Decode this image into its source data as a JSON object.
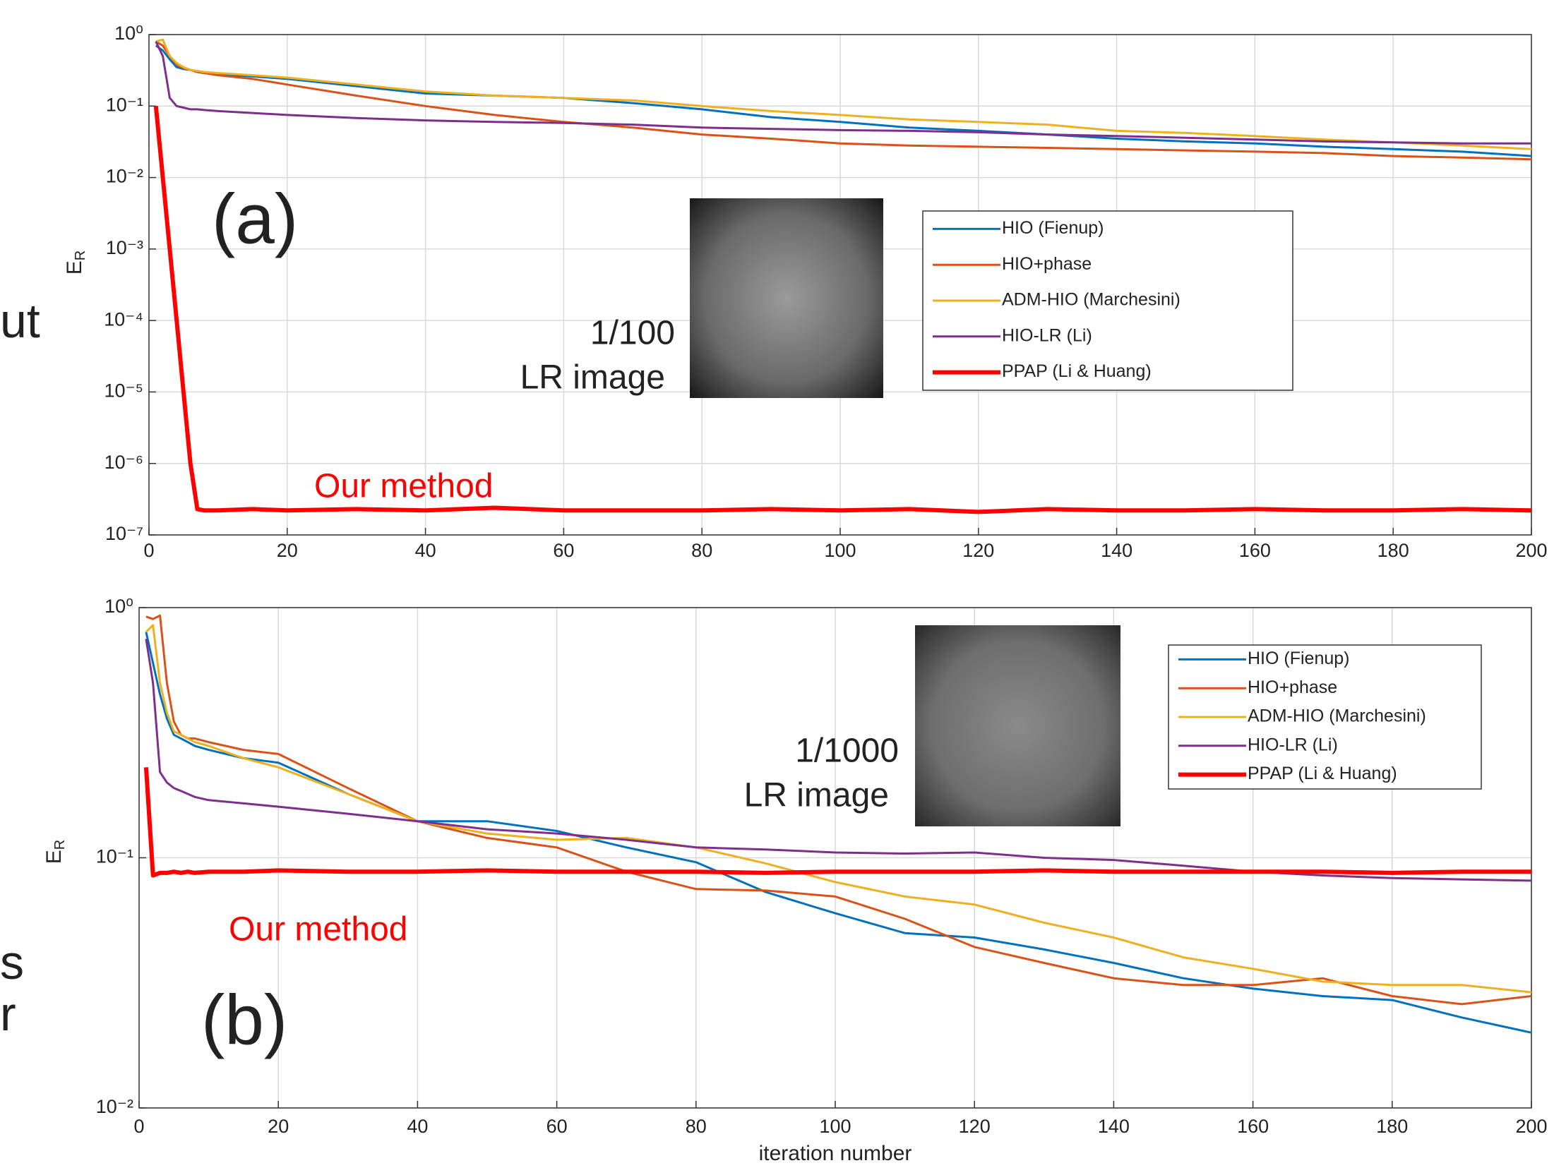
{
  "fragments": [
    "ut",
    "s",
    "r"
  ],
  "chart_data": [
    {
      "type": "line",
      "panel_label": "(a)",
      "annotation": "Our method",
      "inset_caption": [
        "1/100",
        "LR image"
      ],
      "ylabel": "E",
      "ylabel_subscript": "R",
      "log_y": true,
      "grid": true,
      "legend": "center right",
      "xlim": [
        0,
        200
      ],
      "xticks": [
        0,
        20,
        40,
        60,
        80,
        100,
        120,
        140,
        160,
        180,
        200
      ],
      "ylim": [
        1e-07,
        1
      ],
      "yticks": [
        {
          "value": 1e-07,
          "label": "10⁻⁷"
        },
        {
          "value": 1e-06,
          "label": "10⁻⁶"
        },
        {
          "value": 1e-05,
          "label": "10⁻⁵"
        },
        {
          "value": 0.0001,
          "label": "10⁻⁴"
        },
        {
          "value": 0.001,
          "label": "10⁻³"
        },
        {
          "value": 0.01,
          "label": "10⁻²"
        },
        {
          "value": 0.1,
          "label": "10⁻¹"
        },
        {
          "value": 1,
          "label": "10⁰"
        }
      ],
      "x": [
        1,
        2,
        3,
        4,
        5,
        6,
        7,
        8,
        10,
        15,
        20,
        30,
        40,
        50,
        60,
        70,
        80,
        90,
        100,
        110,
        120,
        130,
        140,
        150,
        160,
        170,
        180,
        190,
        200
      ],
      "series": [
        {
          "name": "HIO (Fienup)",
          "color": "#0072bd",
          "linewidth": 3,
          "values": [
            0.7,
            0.6,
            0.45,
            0.35,
            0.33,
            0.32,
            0.3,
            0.29,
            0.28,
            0.26,
            0.24,
            0.19,
            0.15,
            0.14,
            0.13,
            0.11,
            0.09,
            0.07,
            0.06,
            0.05,
            0.045,
            0.04,
            0.035,
            0.032,
            0.03,
            0.027,
            0.025,
            0.023,
            0.02
          ]
        },
        {
          "name": "HIO+phase",
          "color": "#d95319",
          "linewidth": 3,
          "values": [
            0.8,
            0.7,
            0.5,
            0.38,
            0.34,
            0.32,
            0.3,
            0.29,
            0.27,
            0.24,
            0.2,
            0.14,
            0.1,
            0.075,
            0.06,
            0.05,
            0.04,
            0.035,
            0.03,
            0.028,
            0.027,
            0.026,
            0.025,
            0.024,
            0.023,
            0.022,
            0.02,
            0.019,
            0.018
          ]
        },
        {
          "name": "ADM-HIO (Marchesini)",
          "color": "#edb120",
          "linewidth": 3,
          "values": [
            0.8,
            0.85,
            0.5,
            0.4,
            0.35,
            0.32,
            0.31,
            0.3,
            0.29,
            0.27,
            0.25,
            0.2,
            0.16,
            0.14,
            0.13,
            0.12,
            0.1,
            0.085,
            0.075,
            0.065,
            0.06,
            0.055,
            0.045,
            0.042,
            0.038,
            0.034,
            0.031,
            0.028,
            0.025
          ]
        },
        {
          "name": "HIO-LR (Li)",
          "color": "#7e2f8e",
          "linewidth": 3,
          "values": [
            0.8,
            0.5,
            0.13,
            0.1,
            0.095,
            0.09,
            0.09,
            0.088,
            0.085,
            0.08,
            0.075,
            0.068,
            0.063,
            0.06,
            0.058,
            0.055,
            0.05,
            0.048,
            0.046,
            0.045,
            0.043,
            0.04,
            0.038,
            0.036,
            0.034,
            0.032,
            0.031,
            0.03,
            0.03
          ]
        },
        {
          "name": "PPAP (Li & Huang)",
          "color": "#ff0000",
          "linewidth": 6,
          "values": [
            0.1,
            0.01,
            0.001,
            0.0001,
            1e-05,
            1e-06,
            2.3e-07,
            2.2e-07,
            2.2e-07,
            2.3e-07,
            2.2e-07,
            2.3e-07,
            2.2e-07,
            2.4e-07,
            2.2e-07,
            2.2e-07,
            2.2e-07,
            2.3e-07,
            2.2e-07,
            2.3e-07,
            2.1e-07,
            2.3e-07,
            2.2e-07,
            2.2e-07,
            2.3e-07,
            2.2e-07,
            2.2e-07,
            2.3e-07,
            2.2e-07
          ]
        }
      ]
    },
    {
      "type": "line",
      "panel_label": "(b)",
      "annotation": "Our method",
      "inset_caption": [
        "1/1000",
        "LR image"
      ],
      "ylabel": "E",
      "ylabel_subscript": "R",
      "xlabel": "iteration number",
      "log_y": true,
      "grid": true,
      "legend": "upper right",
      "xlim": [
        0,
        200
      ],
      "xticks": [
        0,
        20,
        40,
        60,
        80,
        100,
        120,
        140,
        160,
        180,
        200
      ],
      "ylim": [
        0.01,
        1
      ],
      "yticks": [
        {
          "value": 0.01,
          "label": "10⁻²"
        },
        {
          "value": 0.1,
          "label": "10⁻¹"
        },
        {
          "value": 1,
          "label": "10⁰"
        }
      ],
      "x": [
        1,
        2,
        3,
        4,
        5,
        6,
        7,
        8,
        10,
        15,
        20,
        30,
        40,
        50,
        60,
        70,
        80,
        90,
        100,
        110,
        120,
        130,
        140,
        150,
        160,
        170,
        180,
        190,
        200
      ],
      "series": [
        {
          "name": "HIO (Fienup)",
          "color": "#0072bd",
          "linewidth": 3,
          "values": [
            0.8,
            0.6,
            0.45,
            0.36,
            0.31,
            0.3,
            0.29,
            0.28,
            0.27,
            0.25,
            0.24,
            0.18,
            0.14,
            0.14,
            0.128,
            0.11,
            0.096,
            0.073,
            0.06,
            0.05,
            0.048,
            0.043,
            0.038,
            0.033,
            0.03,
            0.028,
            0.027,
            0.023,
            0.02
          ]
        },
        {
          "name": "HIO+phase",
          "color": "#d95319",
          "linewidth": 3,
          "values": [
            0.92,
            0.9,
            0.93,
            0.5,
            0.35,
            0.31,
            0.3,
            0.3,
            0.29,
            0.27,
            0.26,
            0.19,
            0.14,
            0.12,
            0.11,
            0.088,
            0.075,
            0.074,
            0.07,
            0.057,
            0.044,
            0.038,
            0.033,
            0.031,
            0.031,
            0.033,
            0.028,
            0.026,
            0.028
          ]
        },
        {
          "name": "ADM-HIO (Marchesini)",
          "color": "#edb120",
          "linewidth": 3,
          "values": [
            0.8,
            0.85,
            0.5,
            0.38,
            0.32,
            0.31,
            0.3,
            0.29,
            0.28,
            0.25,
            0.23,
            0.18,
            0.14,
            0.125,
            0.118,
            0.12,
            0.11,
            0.095,
            0.08,
            0.07,
            0.065,
            0.055,
            0.048,
            0.04,
            0.036,
            0.032,
            0.031,
            0.031,
            0.029
          ]
        },
        {
          "name": "HIO-LR (Li)",
          "color": "#7e2f8e",
          "linewidth": 3,
          "values": [
            0.75,
            0.5,
            0.22,
            0.2,
            0.19,
            0.185,
            0.18,
            0.175,
            0.17,
            0.165,
            0.16,
            0.15,
            0.14,
            0.13,
            0.125,
            0.118,
            0.11,
            0.108,
            0.105,
            0.104,
            0.105,
            0.1,
            0.098,
            0.093,
            0.088,
            0.085,
            0.083,
            0.082,
            0.081
          ]
        },
        {
          "name": "PPAP (Li & Huang)",
          "color": "#ff0000",
          "linewidth": 6,
          "values": [
            0.23,
            0.085,
            0.087,
            0.087,
            0.088,
            0.087,
            0.088,
            0.087,
            0.088,
            0.088,
            0.089,
            0.088,
            0.088,
            0.089,
            0.088,
            0.088,
            0.088,
            0.087,
            0.088,
            0.088,
            0.088,
            0.089,
            0.088,
            0.088,
            0.088,
            0.088,
            0.087,
            0.088,
            0.088
          ]
        }
      ]
    }
  ]
}
